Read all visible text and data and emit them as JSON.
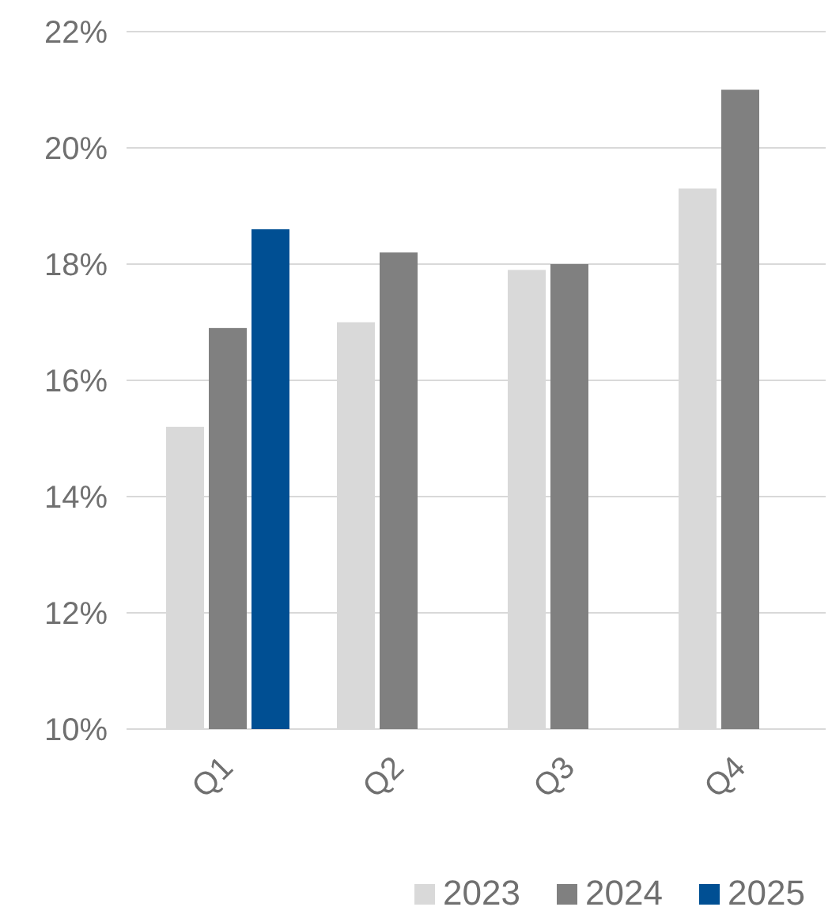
{
  "chart_data": {
    "type": "bar",
    "categories": [
      "Q1",
      "Q2",
      "Q3",
      "Q4"
    ],
    "series": [
      {
        "name": "2023",
        "color": "#d9d9d9",
        "values": [
          15.2,
          17.0,
          17.9,
          19.3
        ]
      },
      {
        "name": "2024",
        "color": "#808080",
        "values": [
          16.9,
          18.2,
          18.0,
          21.0
        ]
      },
      {
        "name": "2025",
        "color": "#004f93",
        "values": [
          18.6,
          null,
          null,
          null
        ]
      }
    ],
    "ylim": [
      10,
      22
    ],
    "yticks": [
      {
        "value": 10,
        "label": "10%"
      },
      {
        "value": 12,
        "label": "12%"
      },
      {
        "value": 14,
        "label": "14%"
      },
      {
        "value": 16,
        "label": "16%"
      },
      {
        "value": 18,
        "label": "18%"
      },
      {
        "value": 20,
        "label": "20%"
      },
      {
        "value": 22,
        "label": "22%"
      }
    ],
    "grid": "y",
    "legend": "bottom right"
  }
}
